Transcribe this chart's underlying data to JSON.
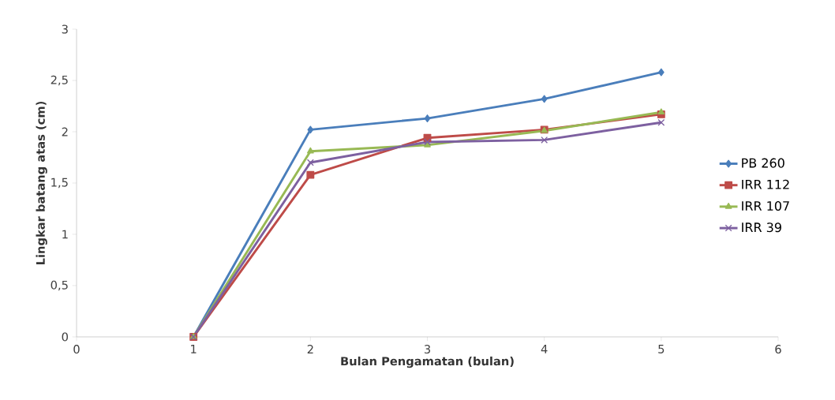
{
  "chart_data": {
    "type": "line",
    "xlabel": "Bulan Pengamatan (bulan)",
    "ylabel": "Lingkar batang atas (cm)",
    "x": [
      1,
      2,
      3,
      4,
      5
    ],
    "series": [
      {
        "name": "PB 260",
        "color": "#4a7ebb",
        "marker": "diamond",
        "values": [
          0,
          2.02,
          2.13,
          2.32,
          2.58
        ]
      },
      {
        "name": "IRR 112",
        "color": "#be4b48",
        "marker": "square",
        "values": [
          0,
          1.58,
          1.94,
          2.02,
          2.17
        ]
      },
      {
        "name": "IRR 107",
        "color": "#98b954",
        "marker": "triangle",
        "values": [
          0,
          1.81,
          1.87,
          2.01,
          2.19
        ]
      },
      {
        "name": "IRR 39",
        "color": "#7d60a0",
        "marker": "cross",
        "values": [
          0,
          1.7,
          1.9,
          1.92,
          2.09
        ]
      }
    ],
    "xlim": [
      0,
      6
    ],
    "ylim": [
      0,
      3
    ],
    "xticks": [
      0,
      1,
      2,
      3,
      4,
      5,
      6
    ],
    "yticks": [
      0,
      {
        "value": 0.5,
        "label": "0,5"
      },
      1,
      {
        "value": 1.5,
        "label": "1,5"
      },
      2,
      {
        "value": 2.5,
        "label": "2,5"
      },
      3
    ],
    "legend": "right",
    "line_style": "solid"
  }
}
